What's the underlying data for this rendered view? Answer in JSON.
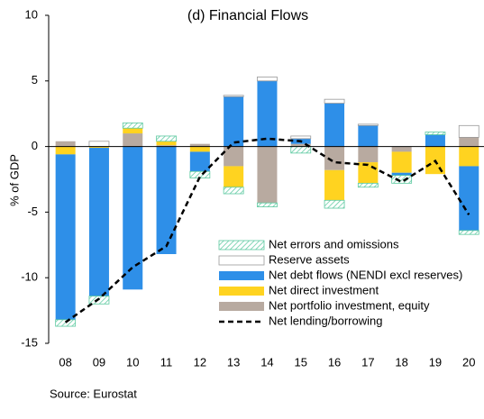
{
  "chart_data": {
    "type": "stacked-bar-line",
    "title": "(d) Financial Flows",
    "y_label": "% of GDP",
    "source": "Source: Eurostat",
    "categories": [
      "08",
      "09",
      "10",
      "11",
      "12",
      "13",
      "14",
      "15",
      "16",
      "17",
      "18",
      "19",
      "20"
    ],
    "ylim": [
      -15,
      10
    ],
    "yticks": [
      10,
      5,
      0,
      -5,
      -10,
      -15
    ],
    "series": [
      {
        "name": "Net portfolio investment, equity",
        "color": "#b8aaa0",
        "values": [
          0.4,
          0,
          1.0,
          0.1,
          0.2,
          -1.5,
          -4.3,
          0.2,
          -1.8,
          -1.2,
          -0.4,
          0,
          0.7
        ]
      },
      {
        "name": "Net direct investment",
        "color": "#ffd320",
        "values": [
          -0.6,
          -0.1,
          0.4,
          0.3,
          -0.4,
          -1.6,
          0,
          0,
          -2.3,
          -1.6,
          -1.6,
          -2.1,
          -1.5
        ]
      },
      {
        "name": "Net debt flows (NENDI excl reserves)",
        "color": "#2e8fe8",
        "values": [
          -12.6,
          -11.3,
          -10.9,
          -8.2,
          -1.5,
          3.8,
          5.0,
          0.4,
          3.3,
          1.6,
          -0.2,
          0.9,
          -4.9
        ]
      },
      {
        "name": "Reserve assets",
        "color": "#ffffff",
        "values": [
          0,
          0.4,
          0,
          0,
          0,
          0.1,
          0.3,
          0.2,
          0.3,
          0.1,
          0,
          0,
          0.9
        ]
      },
      {
        "name": "Net errors and omissions",
        "color": "#5cc9a0",
        "values": [
          -0.5,
          -0.6,
          0.4,
          0.4,
          -0.5,
          -0.5,
          -0.3,
          -0.5,
          -0.6,
          -0.3,
          -0.6,
          0.2,
          -0.3
        ]
      }
    ],
    "line": {
      "name": "Net lending/borrowing",
      "color": "#000000",
      "values": [
        -13.4,
        -11.6,
        -9.2,
        -7.6,
        -2.3,
        0.3,
        0.6,
        0.4,
        -1.2,
        -1.4,
        -2.7,
        -1.1,
        -5.2
      ]
    },
    "legend_order": [
      4,
      3,
      2,
      1,
      0
    ]
  }
}
